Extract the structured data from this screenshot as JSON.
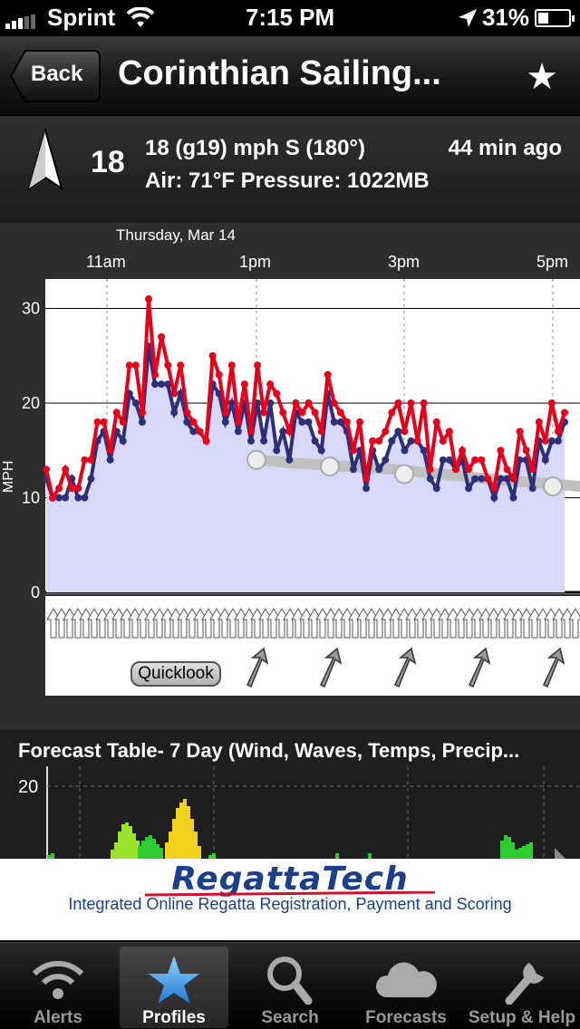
{
  "status_bar": {
    "carrier": "Sprint",
    "time": "7:15 PM",
    "battery": "31%"
  },
  "nav": {
    "back_label": "Back",
    "title": "Corinthian Sailing..."
  },
  "observation": {
    "speed": "18",
    "wind_text": "18 (g19) mph S (180°)",
    "age": "44 min ago",
    "air_pressure": "Air: 71°F  Pressure: 1022MB"
  },
  "chart": {
    "date_label": "Thursday, Mar 14",
    "time_labels": [
      "11am",
      "1pm",
      "3pm",
      "5pm"
    ],
    "quicklook_label": "Quicklook"
  },
  "chart_data": {
    "type": "line",
    "ylabel": "MPH",
    "ylim": [
      0,
      33
    ],
    "yticks": [
      0,
      10,
      20,
      30
    ],
    "grid": true,
    "x_ticks": [
      "11am",
      "1pm",
      "3pm",
      "5pm"
    ],
    "series": [
      {
        "color": "#e8001b",
        "values": [
          13,
          10,
          11,
          13,
          11,
          11,
          14,
          14,
          18,
          18,
          15,
          19,
          18,
          24,
          24,
          19,
          31,
          23,
          27,
          24,
          21,
          24,
          19,
          18,
          17,
          16,
          25,
          23,
          19,
          24,
          18,
          22,
          17,
          24,
          19,
          22,
          21,
          19,
          17,
          20,
          19,
          20,
          19,
          17,
          23,
          20,
          19,
          18,
          15,
          18,
          12,
          16,
          16,
          17,
          19,
          20,
          17,
          20,
          16,
          20,
          13,
          18,
          16,
          17,
          13,
          15,
          13,
          14,
          14,
          12,
          11,
          15,
          13,
          12,
          17,
          15,
          13,
          18,
          16,
          20,
          17,
          19
        ]
      },
      {
        "color": "#2e2f7a",
        "values": [
          12,
          10,
          10,
          10,
          12,
          10,
          10,
          12,
          16,
          17,
          14,
          17,
          16,
          21,
          20,
          18,
          26,
          22,
          22,
          22,
          19,
          21,
          18,
          17,
          17,
          16,
          22,
          21,
          18,
          20,
          17,
          20,
          16,
          20,
          16,
          20,
          15,
          17,
          14,
          19,
          18,
          18,
          16,
          15,
          21,
          18,
          18,
          17,
          13,
          15,
          11,
          15,
          13,
          14,
          16,
          17,
          15,
          16,
          16,
          15,
          12,
          11,
          14,
          14,
          13,
          14,
          11,
          12,
          12,
          12,
          10,
          12,
          12,
          10,
          14,
          14,
          11,
          16,
          14,
          16,
          16,
          18
        ]
      },
      {
        "color": "#c0c0c0",
        "values": [
          14,
          13.6,
          13.3,
          13,
          12.5,
          12,
          11.6,
          11.2
        ]
      }
    ]
  },
  "forecast": {
    "title": "Forecast Table- 7 Day (Wind, Waves, Temps, Precip...",
    "y_tick": "20"
  },
  "ad": {
    "logo": "RegattaTech",
    "tagline": "Integrated Online Regatta Registration, Payment and Scoring"
  },
  "tabs": [
    {
      "label": "Alerts"
    },
    {
      "label": "Profiles"
    },
    {
      "label": "Search"
    },
    {
      "label": "Forecasts"
    },
    {
      "label": "Setup & Help"
    }
  ]
}
